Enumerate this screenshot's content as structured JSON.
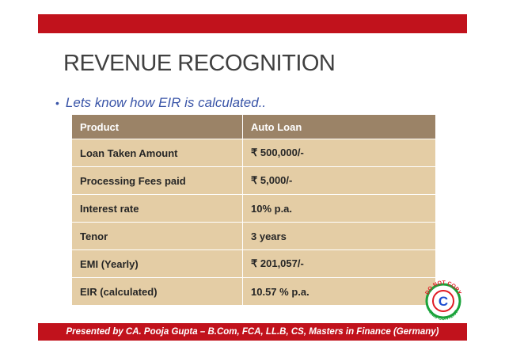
{
  "slide": {
    "title": "REVENUE RECOGNITION",
    "bullet": "Lets know how EIR is calculated..",
    "footer": "Presented by CA. Pooja Gupta – B.Com, FCA, LL.B, CS, Masters in Finance (Germany)"
  },
  "table": {
    "headers": [
      "Product",
      "Auto Loan"
    ],
    "rows": [
      [
        "Loan Taken Amount",
        "₹ 500,000/-"
      ],
      [
        "Processing Fees paid",
        "₹ 5,000/-"
      ],
      [
        "Interest rate",
        "10% p.a."
      ],
      [
        "Tenor",
        "3 years"
      ],
      [
        "EMI (Yearly)",
        "₹ 201,057/-"
      ],
      [
        "EIR (calculated)",
        "10.57 % p.a."
      ]
    ]
  },
  "stamp": {
    "text_top": "DO NOT COPY",
    "text_bottom": "THIS CONTENT",
    "colors": {
      "ring": "#1aa33a",
      "letter": "#1f4fd1",
      "accent": "#e01b24"
    }
  },
  "colors": {
    "accent_red": "#c1121c",
    "header_bg": "#9b8367",
    "cell_bg": "#e4cda5",
    "bullet_text": "#3a55a8"
  }
}
